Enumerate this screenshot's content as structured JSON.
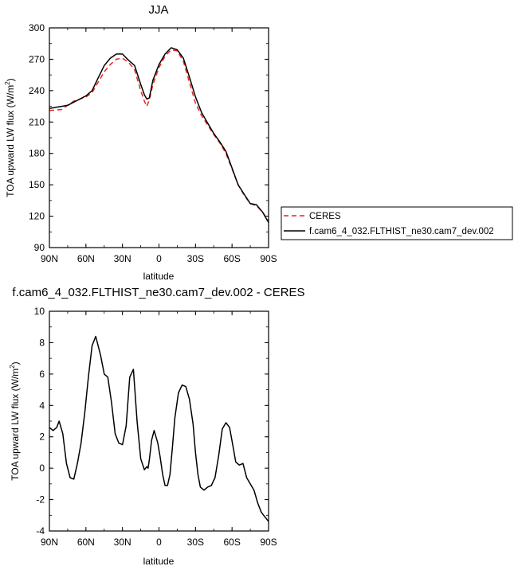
{
  "chart_data": [
    {
      "type": "line",
      "title": "JJA",
      "xlabel": "latitude",
      "ylabel": "TOA upward LW flux (W/m",
      "ylabel_sup": "2",
      "ylabel_tail": ")",
      "xlim": [
        90,
        -90
      ],
      "ylim": [
        90,
        300
      ],
      "xticks": [
        90,
        60,
        30,
        0,
        -30,
        -60,
        -90
      ],
      "xticklabels": [
        "90N",
        "60N",
        "30N",
        "0",
        "30S",
        "60S",
        "90S"
      ],
      "yticks": [
        90,
        120,
        150,
        180,
        210,
        240,
        270,
        300
      ],
      "yticklabels": [
        "90",
        "120",
        "150",
        "180",
        "210",
        "240",
        "270",
        "300"
      ],
      "legend": {
        "position": "right",
        "entries": [
          "CERES",
          "f.cam6_4_032.FLTHIST_ne30.cam7_dev.002"
        ]
      },
      "series": [
        {
          "name": "CERES",
          "color": "#e8241f",
          "dash": true,
          "x": [
            90,
            85,
            80,
            75,
            70,
            65,
            60,
            55,
            50,
            45,
            40,
            35,
            30,
            25,
            20,
            15,
            12,
            10,
            8,
            5,
            0,
            -5,
            -10,
            -15,
            -20,
            -25,
            -30,
            -35,
            -40,
            -45,
            -50,
            -55,
            -60,
            -65,
            -70,
            -75,
            -80,
            -85,
            -88,
            -90
          ],
          "y": [
            221,
            221.5,
            222,
            226,
            230,
            232,
            234,
            238,
            248,
            258,
            265,
            270,
            271,
            267,
            260,
            240,
            230,
            225,
            231,
            246,
            262,
            273,
            279,
            278,
            268,
            248,
            228,
            216,
            207,
            198,
            190,
            180,
            165,
            150,
            140,
            132,
            130,
            124,
            119,
            116
          ]
        },
        {
          "name": "f.cam6_4_032.FLTHIST_ne30.cam7_dev.002",
          "color": "#000000",
          "dash": false,
          "x": [
            90,
            85,
            80,
            75,
            70,
            65,
            60,
            55,
            50,
            45,
            40,
            35,
            30,
            25,
            20,
            15,
            12,
            10,
            8,
            5,
            0,
            -5,
            -10,
            -15,
            -20,
            -25,
            -30,
            -35,
            -40,
            -45,
            -50,
            -55,
            -60,
            -65,
            -70,
            -75,
            -80,
            -85,
            -88,
            -90
          ],
          "y": [
            223,
            224,
            225,
            226,
            229,
            232,
            235,
            240,
            252,
            264,
            271,
            275,
            275,
            269,
            264,
            246,
            236,
            232,
            233,
            250,
            265,
            275,
            281,
            279,
            271,
            253,
            234,
            219,
            209,
            199,
            191,
            182,
            166,
            150,
            141,
            132,
            131,
            124,
            118,
            114
          ]
        }
      ]
    },
    {
      "type": "line",
      "title": "f.cam6_4_032.FLTHIST_ne30.cam7_dev.002 - CERES",
      "xlabel": "latitude",
      "ylabel": "TOA upward LW flux (W/m",
      "ylabel_sup": "2",
      "ylabel_tail": ")",
      "xlim": [
        90,
        -90
      ],
      "ylim": [
        -4,
        10
      ],
      "xticks": [
        90,
        60,
        30,
        0,
        -30,
        -60,
        -90
      ],
      "xticklabels": [
        "90N",
        "60N",
        "30N",
        "0",
        "30S",
        "60S",
        "90S"
      ],
      "yticks": [
        -4,
        -2,
        0,
        2,
        4,
        6,
        8,
        10
      ],
      "yticklabels": [
        "-4",
        "-2",
        "0",
        "2",
        "4",
        "6",
        "8",
        "10"
      ],
      "series": [
        {
          "color": "#000000",
          "dash": false,
          "x": [
            90,
            87,
            84,
            82,
            79,
            76,
            73,
            70,
            67,
            64,
            61,
            58,
            55,
            52,
            48,
            45,
            42,
            39,
            36,
            33,
            30,
            27,
            24,
            21,
            18,
            15,
            12,
            10,
            9,
            8,
            6,
            4,
            1,
            -1,
            -3,
            -5,
            -7,
            -9,
            -11,
            -13,
            -16,
            -19,
            -22,
            -25,
            -28,
            -30,
            -32,
            -34,
            -37,
            -40,
            -43,
            -46,
            -49,
            -52,
            -55,
            -58,
            -61,
            -63,
            -66,
            -69,
            -72,
            -75,
            -78,
            -81,
            -84,
            -87,
            -89,
            -90
          ],
          "y": [
            2.6,
            2.4,
            2.6,
            3.0,
            2.2,
            0.3,
            -0.6,
            -0.7,
            0.3,
            1.6,
            3.5,
            5.8,
            7.8,
            8.4,
            7.2,
            6.0,
            5.8,
            4.2,
            2.2,
            1.6,
            1.5,
            2.7,
            5.8,
            6.3,
            3.0,
            0.6,
            -0.1,
            0.1,
            0.0,
            0.5,
            1.8,
            2.4,
            1.6,
            0.7,
            -0.4,
            -1.1,
            -1.1,
            -0.4,
            1.3,
            3.2,
            4.8,
            5.3,
            5.2,
            4.4,
            2.8,
            1.0,
            -0.4,
            -1.2,
            -1.4,
            -1.2,
            -1.1,
            -0.6,
            0.8,
            2.5,
            2.9,
            2.6,
            1.3,
            0.4,
            0.2,
            0.3,
            -0.6,
            -1.0,
            -1.4,
            -2.2,
            -2.8,
            -3.1,
            -3.3,
            -3.4
          ]
        }
      ]
    }
  ]
}
